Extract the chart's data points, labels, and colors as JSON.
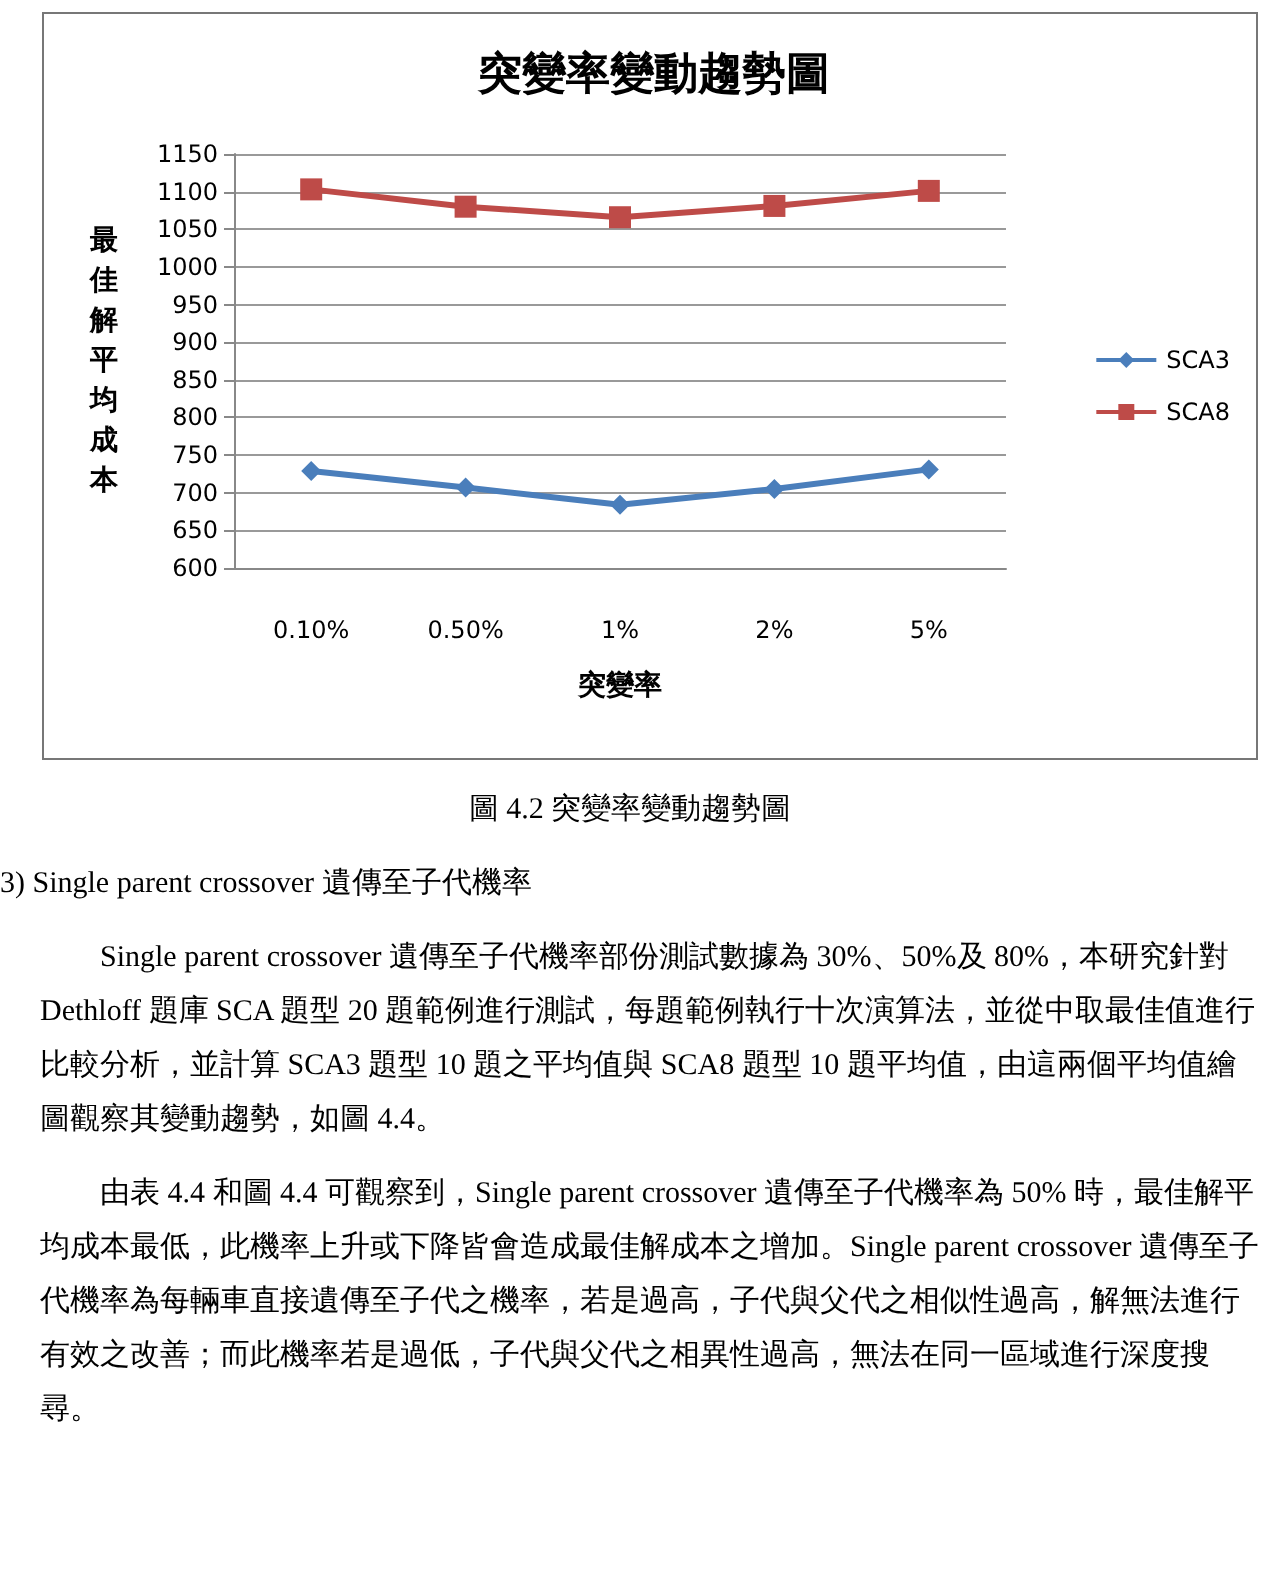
{
  "chart_data": {
    "type": "line",
    "title": "突變率變動趨勢圖",
    "xlabel": "突變率",
    "ylabel": "最佳解平均成本",
    "categories": [
      "0.10%",
      "0.50%",
      "1%",
      "2%",
      "5%"
    ],
    "series": [
      {
        "name": "SCA3",
        "color": "#4a7ebb",
        "marker": "diamond",
        "values": [
          729,
          707,
          684,
          705,
          731
        ]
      },
      {
        "name": "SCA8",
        "color": "#be4b48",
        "marker": "square",
        "values": [
          1103,
          1080,
          1066,
          1081,
          1101
        ]
      }
    ],
    "ylim": [
      600,
      1150
    ],
    "yticks": [
      600,
      650,
      700,
      750,
      800,
      850,
      900,
      950,
      1000,
      1050,
      1100,
      1150
    ],
    "grid": "y",
    "legend": "right",
    "line_style": "solid",
    "annotations": [
      "圖 4.2 突變率變動趨勢圖",
      "3) Single parent crossover 遺傳至子代機率",
      "Single parent crossover 遺傳至子代機率部份測試數據為 30%、50%及 80%，本研究針對 Dethloff 題庫 SCA 題型 20 題範例進行測試，每題範例執行十次演算法，並從中取最佳值進行比較分析，並計算 SCA3 題型 10 題之平均值與 SCA8 題型 10 題平均值，由這兩個平均值繪圖觀察其變動趨勢，如圖 4.4。",
      "由表 4.4 和圖 4.4 可觀察到，Single parent crossover 遺傳至子代機率為 50% 時，最佳解平均成本最低，此機率上升或下降皆會造成最佳解成本之增加。Single parent crossover 遺傳至子代機率為每輛車直接遺傳至子代之機率，若是過高，子代與父代之相似性過高，解無法進行有效之改善；而此機率若是過低，子代與父代之相異性過高，無法在同一區域進行深度搜尋。"
    ]
  }
}
